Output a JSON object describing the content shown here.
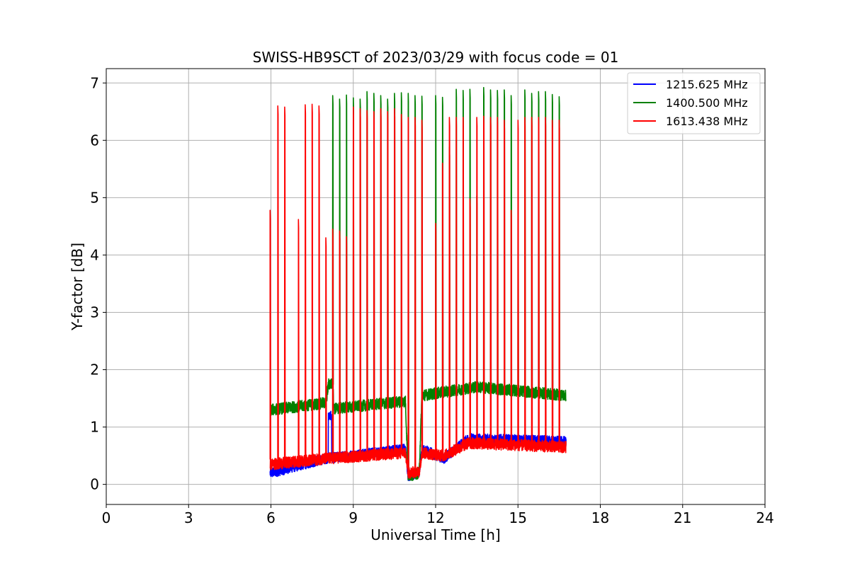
{
  "chart_data": {
    "type": "line",
    "title": "SWISS-HB9SCT of 2023/03/29 with focus code = 01",
    "xlabel": "Universal Time [h]",
    "ylabel": "Y-factor [dB]",
    "xlim": [
      0,
      24
    ],
    "ylim": [
      -0.35,
      7.25
    ],
    "xticks": [
      0,
      3,
      6,
      9,
      12,
      15,
      18,
      21,
      24
    ],
    "yticks": [
      0,
      1,
      2,
      3,
      4,
      5,
      6,
      7
    ],
    "grid": true,
    "legend_position": "top-right",
    "data_start_h": 5.97,
    "data_end_h": 16.75,
    "series": [
      {
        "name": "1215.625 MHz",
        "color": "#0000ff",
        "baseline": [
          [
            6.0,
            0.2
          ],
          [
            8.0,
            0.45
          ],
          [
            10.9,
            0.62
          ],
          [
            11.0,
            0.15
          ],
          [
            11.4,
            0.2
          ],
          [
            11.5,
            0.62
          ],
          [
            12.3,
            0.45
          ],
          [
            13.2,
            0.8
          ],
          [
            16.75,
            0.75
          ]
        ],
        "noise": 0.09,
        "bump": [
          [
            8.15,
            1.2
          ]
        ]
      },
      {
        "name": "1400.500 MHz",
        "color": "#008000",
        "baseline": [
          [
            6.0,
            1.3
          ],
          [
            8.0,
            1.42
          ],
          [
            8.1,
            1.75
          ],
          [
            8.25,
            1.75
          ],
          [
            8.3,
            1.32
          ],
          [
            10.9,
            1.45
          ],
          [
            11.0,
            0.15
          ],
          [
            11.4,
            0.2
          ],
          [
            11.5,
            1.55
          ],
          [
            13.5,
            1.7
          ],
          [
            16.75,
            1.55
          ]
        ],
        "noise": 0.1,
        "spike_tops": [
          6.78,
          6.72,
          6.79,
          6.74,
          6.72,
          6.85,
          6.82,
          6.78,
          6.72,
          6.82,
          6.83,
          6.82,
          6.78,
          6.77,
          6.78,
          6.75,
          5.88,
          6.89,
          6.87,
          6.89,
          5.03,
          6.92,
          6.88,
          6.87,
          6.88,
          6.78,
          4.9,
          6.88,
          6.82,
          6.85,
          6.85,
          6.8,
          6.76
        ]
      },
      {
        "name": "1613.438 MHz",
        "color": "#ff0000",
        "baseline": [
          [
            6.0,
            0.35
          ],
          [
            8.0,
            0.45
          ],
          [
            10.9,
            0.55
          ],
          [
            11.0,
            0.2
          ],
          [
            11.4,
            0.22
          ],
          [
            11.5,
            0.55
          ],
          [
            12.3,
            0.5
          ],
          [
            13.2,
            0.72
          ],
          [
            16.75,
            0.65
          ]
        ],
        "noise": 0.1,
        "spike_times": [
          5.97,
          6.25,
          6.5,
          7.0,
          7.25,
          7.5,
          7.75,
          8.0,
          8.25,
          8.5,
          8.75,
          9.0,
          9.25,
          9.5,
          9.75,
          10.0,
          10.25,
          10.5,
          10.75,
          11.0,
          11.25,
          11.5,
          12.0,
          12.25,
          12.5,
          12.75,
          13.0,
          13.25,
          13.5,
          13.75,
          14.0,
          14.25,
          14.5,
          14.75,
          15.0,
          15.25,
          15.5,
          15.75,
          16.0,
          16.25,
          16.5
        ],
        "spike_tops": [
          4.78,
          6.6,
          6.58,
          4.62,
          6.62,
          6.63,
          6.6,
          4.3,
          4.45,
          4.42,
          4.32,
          6.58,
          6.55,
          6.52,
          6.5,
          6.55,
          6.5,
          6.55,
          6.45,
          6.4,
          6.4,
          6.35,
          4.55,
          5.6,
          6.4,
          6.4,
          6.4,
          4.98,
          6.4,
          6.42,
          6.4,
          6.4,
          6.35,
          4.78,
          6.35,
          6.4,
          6.4,
          6.4,
          6.4,
          6.35,
          6.35
        ]
      }
    ]
  }
}
